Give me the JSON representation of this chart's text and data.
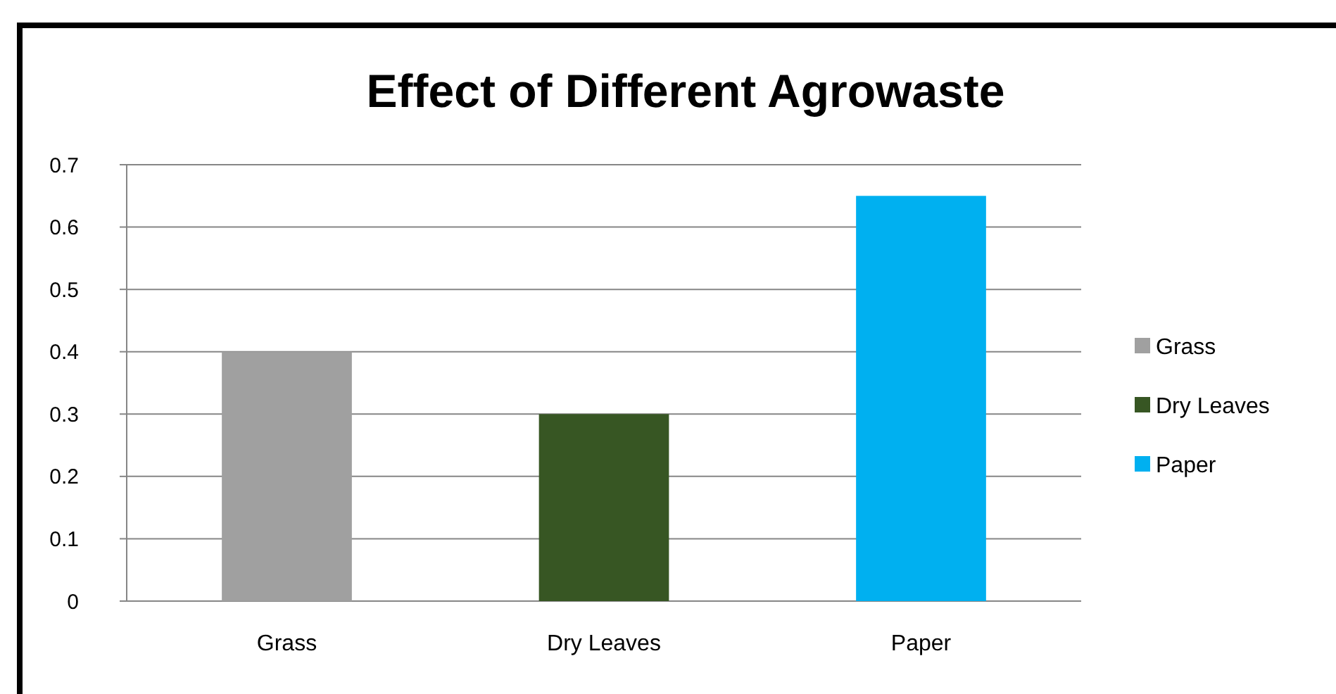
{
  "chart_data": {
    "type": "bar",
    "title": "Effect of Different Agrowaste",
    "categories": [
      "Grass",
      "Dry Leaves",
      "Paper"
    ],
    "series": [
      {
        "name": "Grass",
        "color": "#a0a0a0",
        "values": [
          0.4,
          null,
          null
        ]
      },
      {
        "name": "Dry Leaves",
        "color": "#375623",
        "values": [
          null,
          0.3,
          null
        ]
      },
      {
        "name": "Paper",
        "color": "#00b0f0",
        "values": [
          null,
          null,
          0.65
        ]
      }
    ],
    "ylim": [
      0,
      0.7
    ],
    "yticks": [
      0,
      0.1,
      0.2,
      0.3,
      0.4,
      0.5,
      0.6,
      0.7
    ],
    "grid": "y",
    "legend": "right"
  }
}
